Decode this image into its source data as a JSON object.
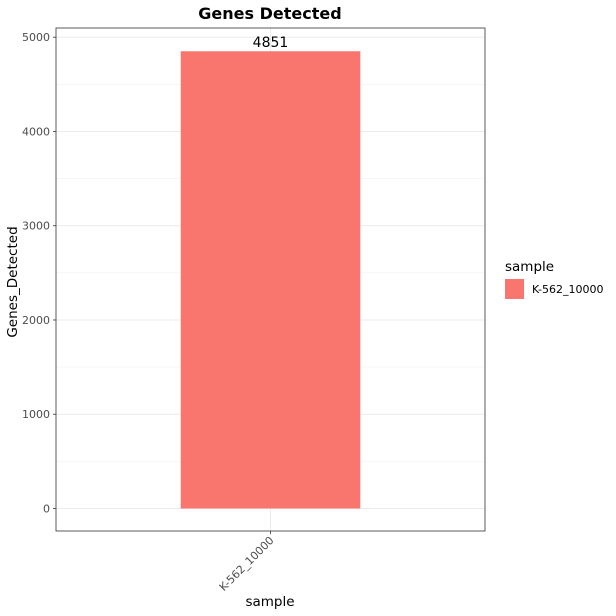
{
  "chart_data": {
    "type": "bar",
    "title": "Genes Detected",
    "xlabel": "sample",
    "ylabel": "Genes_Detected",
    "categories": [
      "K-562_10000"
    ],
    "values": [
      4851
    ],
    "data_labels": [
      "4851"
    ],
    "ylim": [
      0,
      5100
    ],
    "yticks": [
      0,
      1000,
      2000,
      3000,
      4000,
      5000
    ],
    "grid": true,
    "legend": {
      "title": "sample",
      "placement": "right",
      "entries": [
        "K-562_10000"
      ]
    },
    "colors": {
      "bar": "#F8766D",
      "grid_major": "#EBEBEB",
      "grid_minor": "#F2F2F2",
      "panel_border": "#333333"
    }
  }
}
